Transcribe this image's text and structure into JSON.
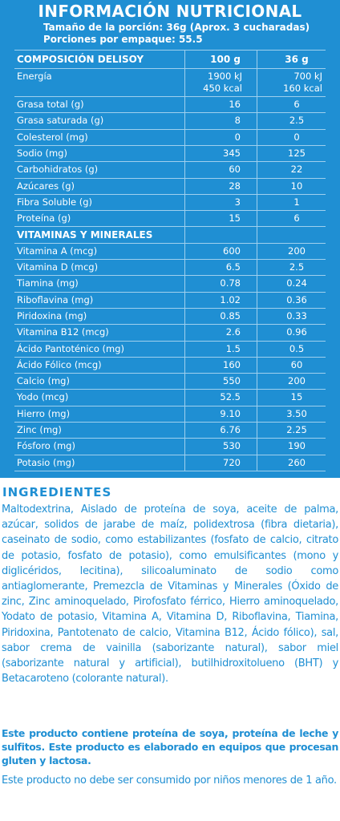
{
  "header": {
    "title": "INFORMACIÓN NUTRICIONAL",
    "serving_size": "Tamaño de la porción: 36g (Aprox. 3 cucharadas)",
    "servings": "Porciones por empaque: 55.5"
  },
  "table": {
    "col_label": "COMPOSICIÓN DELISOY",
    "col_100g": "100 g",
    "col_36g": "36 g",
    "energy": {
      "label": "Energía",
      "v100_kj": "1900 kJ",
      "v100_kcal": "450 kcal",
      "v36_kj": "700 kJ",
      "v36_kcal": "160 kcal"
    },
    "rows": [
      {
        "label": "Grasa total (g)",
        "v100": "16",
        "v36": "6"
      },
      {
        "label": "Grasa saturada (g)",
        "v100": "8",
        "v36": "2.5"
      },
      {
        "label": "Colesterol (mg)",
        "v100": "0",
        "v36": "0"
      },
      {
        "label": "Sodio (mg)",
        "v100": "345",
        "v36": "125"
      },
      {
        "label": "Carbohidratos (g)",
        "v100": "60",
        "v36": "22"
      },
      {
        "label": "Azúcares (g)",
        "v100": "28",
        "v36": "10"
      },
      {
        "label": "Fibra Soluble (g)",
        "v100": "3",
        "v36": "1"
      },
      {
        "label": "Proteína (g)",
        "v100": "15",
        "v36": "6"
      }
    ],
    "vitamins_heading": "VITAMINAS Y MINERALES",
    "vitamins": [
      {
        "label": "Vitamina A (mcg)",
        "v100": "600",
        "v36": "200"
      },
      {
        "label": "Vitamina D (mcg)",
        "v100": "6.5",
        "v36": "2.5"
      },
      {
        "label": "Tiamina (mg)",
        "v100": "0.78",
        "v36": "0.24"
      },
      {
        "label": "Riboflavina (mg)",
        "v100": "1.02",
        "v36": "0.36"
      },
      {
        "label": "Piridoxina (mg)",
        "v100": "0.85",
        "v36": "0.33"
      },
      {
        "label": "Vitamina B12 (mcg)",
        "v100": "2.6",
        "v36": "0.96"
      },
      {
        "label": "Ácido Pantoténico (mg)",
        "v100": "1.5",
        "v36": "0.5"
      },
      {
        "label": "Ácido Fólico (mcg)",
        "v100": "160",
        "v36": "60"
      },
      {
        "label": "Calcio (mg)",
        "v100": "550",
        "v36": "200"
      },
      {
        "label": "Yodo (mcg)",
        "v100": "52.5",
        "v36": "15"
      },
      {
        "label": "Hierro (mg)",
        "v100": "9.10",
        "v36": "3.50"
      },
      {
        "label": "Zinc (mg)",
        "v100": "6.76",
        "v36": "2.25"
      },
      {
        "label": "Fósforo (mg)",
        "v100": "530",
        "v36": "190"
      },
      {
        "label": "Potasio (mg)",
        "v100": "720",
        "v36": "260"
      }
    ]
  },
  "ingredients": {
    "title": "INGREDIENTES",
    "body": "Maltodextrina, Aislado de proteína de soya, aceite de palma, azúcar, solidos de jarabe de maíz, polidextrosa (fibra dietaria), caseinato de sodio, como estabilizantes (fosfato de calcio, citrato de potasio, fosfato de potasio), como emulsificantes (mono y diglicéridos, lecitina), silicoaluminato de sodio como antiaglomerante, Premezcla de Vitaminas y Minerales (Óxido de zinc, Zinc aminoquelado, Pirofosfato férrico, Hierro aminoquelado, Yodato de potasio, Vitamina A, Vitamina D, Riboflavina, Tiamina, Piridoxina, Pantotenato de calcio, Vitamina B12, Ácido fólico), sal, sabor crema de vainilla (saborizante natural), sabor miel (saborizante natural y artificial), butilhidroxitolueno (BHT) y Betacaroteno (colorante natural).",
    "allergen_warning": "Este producto contiene proteína de soya, proteína de leche y sulfitos. Este producto es elaborado en equipos que procesan gluten y lactosa.",
    "age_note": "Este producto no debe ser consumido por niños menores de 1 año."
  },
  "colors": {
    "brand_blue": "#1f8fd3",
    "rule": "#9fd0ee"
  }
}
